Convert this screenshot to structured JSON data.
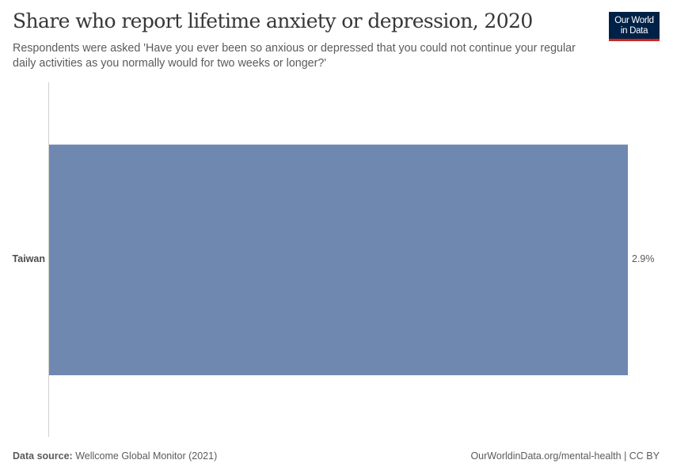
{
  "header": {
    "title": "Share who report lifetime anxiety or depression, 2020",
    "subtitle": "Respondents were asked 'Have you ever been so anxious or depressed that you could not continue your regular daily activities as you normally would for two weeks or longer?'",
    "logo_line1": "Our World",
    "logo_line2": "in Data"
  },
  "footer": {
    "source_label": "Data source:",
    "source_value": "Wellcome Global Monitor (2021)",
    "url": "OurWorldinData.org/mental-health | CC BY"
  },
  "colors": {
    "bar": "#6f88b0",
    "logo_bg": "#002147",
    "logo_accent": "#ce261e"
  },
  "chart_data": {
    "type": "bar",
    "orientation": "horizontal",
    "title": "Share who report lifetime anxiety or depression, 2020",
    "subtitle": "Respondents were asked 'Have you ever been so anxious or depressed that you could not continue your regular daily activities as you normally would for two weeks or longer?'",
    "categories": [
      "Taiwan"
    ],
    "values": [
      2.9
    ],
    "value_labels": [
      "2.9%"
    ],
    "unit": "%",
    "xlabel": "",
    "ylabel": "",
    "grid": false,
    "legend": null
  }
}
